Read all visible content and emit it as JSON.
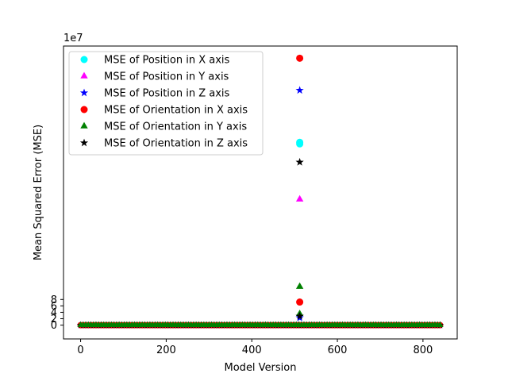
{
  "chart_data": {
    "type": "scatter",
    "xlabel": "Model Version",
    "ylabel": "Mean Squared Error (MSE)",
    "y_offset_text": "1e7",
    "xlim": [
      -40,
      880
    ],
    "ylim": [
      -4.3,
      87.0
    ],
    "y_unit_multiplier": 10000000,
    "xticks": [
      0,
      200,
      400,
      600,
      800
    ],
    "yticks": [
      0,
      2,
      4,
      6,
      8
    ],
    "grid": false,
    "legend_position": "top-left",
    "baseline": {
      "x_start": 0,
      "x_end": 840,
      "step": 6,
      "value": 0
    },
    "series": [
      {
        "name": "MSE of Position in X axis",
        "marker": "circle",
        "color": "#00ffff",
        "points": [
          [
            512,
            57.0
          ],
          [
            512,
            56.5
          ]
        ]
      },
      {
        "name": "MSE of Position in Y axis",
        "marker": "triangle",
        "color": "#ff00ff",
        "points": [
          [
            512,
            39.2
          ]
        ]
      },
      {
        "name": "MSE of Position in Z axis",
        "marker": "star",
        "color": "#0000ff",
        "points": [
          [
            512,
            73.2
          ],
          [
            512,
            2.3
          ]
        ]
      },
      {
        "name": "MSE of Orientation in X axis",
        "marker": "circle",
        "color": "#ff0000",
        "points": [
          [
            512,
            83.2
          ],
          [
            512,
            7.2
          ]
        ]
      },
      {
        "name": "MSE of Orientation in Y axis",
        "marker": "triangle",
        "color": "#008000",
        "points": [
          [
            512,
            12.0
          ],
          [
            512,
            3.5
          ]
        ]
      },
      {
        "name": "MSE of Orientation in Z axis",
        "marker": "star",
        "color": "#000000",
        "points": [
          [
            512,
            50.8
          ],
          [
            512,
            2.8
          ]
        ]
      }
    ]
  }
}
